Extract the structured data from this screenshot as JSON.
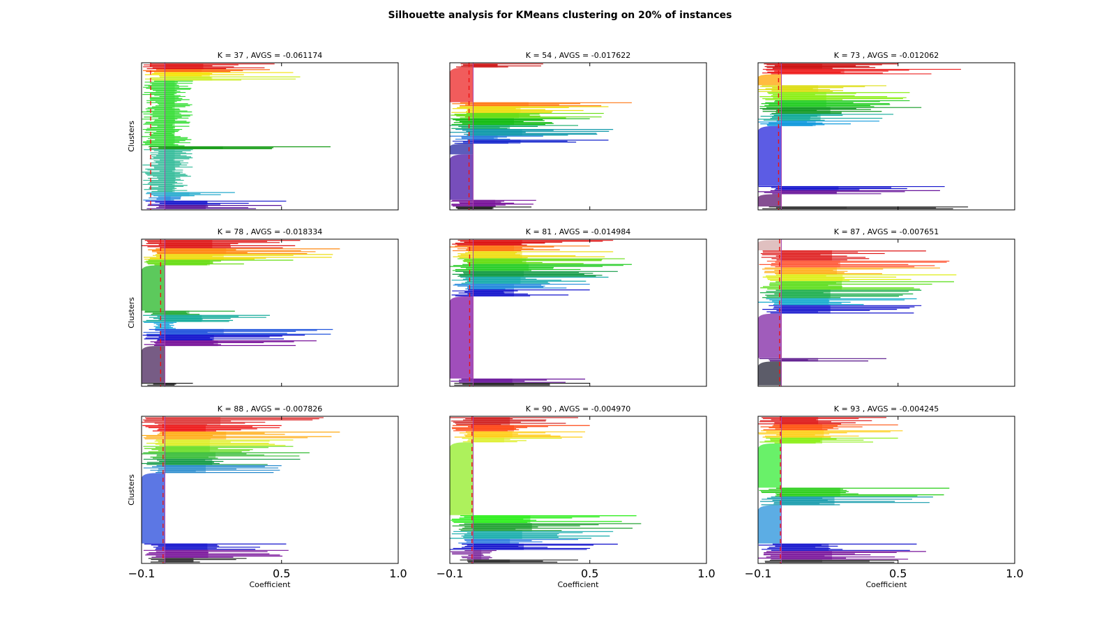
{
  "figure": {
    "suptitle": "Silhouette analysis for KMeans clustering on 20% of instances"
  },
  "chart_data": [
    {
      "type": "bar",
      "subtype": "silhouette",
      "title": "K = 37 , AVGS = -0.061174",
      "k": 37,
      "avgs": -0.061174,
      "ylabel": "Clusters",
      "xlabel": "",
      "xlim": [
        -0.1,
        1.0
      ],
      "xticks": [
        "−0.1",
        "0.5",
        "1.0"
      ],
      "xticks_visible": false,
      "silhouette_sizes_and_extents": [
        {
          "color": "#dd1111",
          "size": 4,
          "max": 0.47
        },
        {
          "color": "#ff6611",
          "size": 2,
          "max": 0.45
        },
        {
          "color": "#f5e000",
          "size": 3,
          "max": 0.55
        },
        {
          "color": "#ccee22",
          "size": 3,
          "max": 0.58
        },
        {
          "color": "#33dd33",
          "size": 46,
          "max": 0.12
        },
        {
          "color": "#119911",
          "size": 2,
          "max": 0.71
        },
        {
          "color": "#33bb99",
          "size": 30,
          "max": 0.12
        },
        {
          "color": "#22aacc",
          "size": 3,
          "max": 0.3
        },
        {
          "color": "#2288dd",
          "size": 3,
          "max": 0.07
        },
        {
          "color": "#1111cc",
          "size": 3,
          "max": 0.52
        },
        {
          "color": "#551199",
          "size": 3,
          "max": 0.5
        }
      ]
    },
    {
      "type": "bar",
      "subtype": "silhouette",
      "title": "K = 54 , AVGS = -0.017622",
      "k": 54,
      "avgs": -0.017622,
      "ylabel": "",
      "xlabel": "",
      "xlim": [
        -0.1,
        1.0
      ],
      "xticks": [
        "−0.1",
        "0.5",
        "1.0"
      ],
      "xticks_visible": false,
      "silhouette_sizes_and_extents": [
        {
          "color": "#cc1111",
          "size": 3,
          "max": 0.3
        },
        {
          "color": "#ee3333",
          "size": 26,
          "max": 0.0
        },
        {
          "color": "#ff7711",
          "size": 3,
          "max": 0.68
        },
        {
          "color": "#eedd11",
          "size": 5,
          "max": 0.58
        },
        {
          "color": "#66dd11",
          "size": 4,
          "max": 0.56
        },
        {
          "color": "#11bb11",
          "size": 5,
          "max": 0.5
        },
        {
          "color": "#11aa66",
          "size": 3,
          "max": 0.45
        },
        {
          "color": "#1199aa",
          "size": 5,
          "max": 0.6
        },
        {
          "color": "#2277dd",
          "size": 3,
          "max": 0.3
        },
        {
          "color": "#1122cc",
          "size": 3,
          "max": 0.58
        },
        {
          "color": "#3333aa",
          "size": 8,
          "max": 0.0
        },
        {
          "color": "#5522aa",
          "size": 34,
          "max": 0.0
        },
        {
          "color": "#771199",
          "size": 5,
          "max": 0.27
        },
        {
          "color": "#222222",
          "size": 2,
          "max": 0.25
        }
      ]
    },
    {
      "type": "bar",
      "subtype": "silhouette",
      "title": "K = 73 , AVGS = -0.012062",
      "k": 73,
      "avgs": -0.012062,
      "ylabel": "",
      "xlabel": "",
      "xlim": [
        -0.1,
        1.0
      ],
      "xticks": [
        "−0.1",
        "0.5",
        "1.0"
      ],
      "xticks_visible": false,
      "silhouette_sizes_and_extents": [
        {
          "color": "#cc1111",
          "size": 4,
          "max": 0.5
        },
        {
          "color": "#ee2222",
          "size": 4,
          "max": 0.77
        },
        {
          "color": "#ffaa11",
          "size": 8,
          "max": 0.0
        },
        {
          "color": "#dddd11",
          "size": 5,
          "max": 0.45
        },
        {
          "color": "#88ee11",
          "size": 6,
          "max": 0.55
        },
        {
          "color": "#22cc22",
          "size": 5,
          "max": 0.55
        },
        {
          "color": "#119922",
          "size": 5,
          "max": 0.6
        },
        {
          "color": "#11aa99",
          "size": 5,
          "max": 0.48
        },
        {
          "color": "#1199dd",
          "size": 4,
          "max": 0.42
        },
        {
          "color": "#3333dd",
          "size": 44,
          "max": 0.0
        },
        {
          "color": "#1111cc",
          "size": 3,
          "max": 0.7
        },
        {
          "color": "#661199",
          "size": 3,
          "max": 0.68
        },
        {
          "color": "#662277",
          "size": 9,
          "max": 0.0
        },
        {
          "color": "#333333",
          "size": 2,
          "max": 0.8
        }
      ]
    },
    {
      "type": "bar",
      "subtype": "silhouette",
      "title": "K = 78 , AVGS = -0.018334",
      "k": 78,
      "avgs": -0.018334,
      "ylabel": "Clusters",
      "xlabel": "",
      "xlim": [
        -0.1,
        1.0
      ],
      "xticks": [
        "−0.1",
        "0.5",
        "1.0"
      ],
      "xticks_visible": false,
      "silhouette_sizes_and_extents": [
        {
          "color": "#dd1111",
          "size": 6,
          "max": 0.58
        },
        {
          "color": "#ff8811",
          "size": 4,
          "max": 0.75
        },
        {
          "color": "#eedd11",
          "size": 4,
          "max": 0.72
        },
        {
          "color": "#66dd11",
          "size": 4,
          "max": 0.55
        },
        {
          "color": "#33bb33",
          "size": 32,
          "max": 0.0
        },
        {
          "color": "#22aa33",
          "size": 3,
          "max": 0.3
        },
        {
          "color": "#11aa99",
          "size": 5,
          "max": 0.45
        },
        {
          "color": "#22aadd",
          "size": 5,
          "max": 0.05
        },
        {
          "color": "#2255dd",
          "size": 4,
          "max": 0.72
        },
        {
          "color": "#1111cc",
          "size": 4,
          "max": 0.6
        },
        {
          "color": "#771199",
          "size": 4,
          "max": 0.65
        },
        {
          "color": "#553366",
          "size": 26,
          "max": 0.0
        },
        {
          "color": "#222222",
          "size": 2,
          "max": 0.12
        }
      ]
    },
    {
      "type": "bar",
      "subtype": "silhouette",
      "title": "K = 81 , AVGS = -0.014984",
      "k": 81,
      "avgs": -0.014984,
      "ylabel": "",
      "xlabel": "",
      "xlim": [
        -0.1,
        1.0
      ],
      "xticks": [
        "−0.1",
        "0.5",
        "1.0"
      ],
      "xticks_visible": false,
      "silhouette_sizes_and_extents": [
        {
          "color": "#dd1111",
          "size": 4,
          "max": 0.6
        },
        {
          "color": "#ff7711",
          "size": 4,
          "max": 0.5
        },
        {
          "color": "#eedd11",
          "size": 5,
          "max": 0.6
        },
        {
          "color": "#66dd11",
          "size": 4,
          "max": 0.65
        },
        {
          "color": "#22cc22",
          "size": 5,
          "max": 0.68
        },
        {
          "color": "#119944",
          "size": 4,
          "max": 0.62
        },
        {
          "color": "#11aaaa",
          "size": 5,
          "max": 0.58
        },
        {
          "color": "#2288dd",
          "size": 4,
          "max": 0.5
        },
        {
          "color": "#1111cc",
          "size": 5,
          "max": 0.5
        },
        {
          "color": "#8822aa",
          "size": 58,
          "max": 0.0
        },
        {
          "color": "#661199",
          "size": 3,
          "max": 0.48
        },
        {
          "color": "#222222",
          "size": 2,
          "max": 0.5
        }
      ]
    },
    {
      "type": "bar",
      "subtype": "silhouette",
      "title": "K = 87 , AVGS = -0.007651",
      "k": 87,
      "avgs": -0.007651,
      "ylabel": "",
      "xlabel": "",
      "xlim": [
        -0.1,
        1.0
      ],
      "xticks": [
        "−0.1",
        "0.5",
        "1.0"
      ],
      "xticks_visible": false,
      "silhouette_sizes_and_extents": [
        {
          "color": "#d8b0b0",
          "size": 6,
          "max": 0.0
        },
        {
          "color": "#dd1111",
          "size": 6,
          "max": 0.62
        },
        {
          "color": "#ff5533",
          "size": 4,
          "max": 0.72
        },
        {
          "color": "#ffaa11",
          "size": 4,
          "max": 0.68
        },
        {
          "color": "#ddee11",
          "size": 4,
          "max": 0.75
        },
        {
          "color": "#55dd11",
          "size": 5,
          "max": 0.74
        },
        {
          "color": "#11aa44",
          "size": 5,
          "max": 0.6
        },
        {
          "color": "#11aacc",
          "size": 4,
          "max": 0.58
        },
        {
          "color": "#1111cc",
          "size": 5,
          "max": 0.6
        },
        {
          "color": "#8833aa",
          "size": 26,
          "max": 0.0
        },
        {
          "color": "#551188",
          "size": 2,
          "max": 0.45
        },
        {
          "color": "#333344",
          "size": 14,
          "max": 0.0
        }
      ]
    },
    {
      "type": "bar",
      "subtype": "silhouette",
      "title": "K = 88 , AVGS = -0.007826",
      "k": 88,
      "avgs": -0.007826,
      "ylabel": "Clusters",
      "xlabel": "Coefficient",
      "xlim": [
        -0.1,
        1.0
      ],
      "xticks": [
        "−0.1",
        "0.5",
        "1.0"
      ],
      "xticks_visible": true,
      "silhouette_sizes_and_extents": [
        {
          "color": "#dd3333",
          "size": 5,
          "max": 0.68
        },
        {
          "color": "#ee1111",
          "size": 4,
          "max": 0.5
        },
        {
          "color": "#ffaa11",
          "size": 5,
          "max": 0.75
        },
        {
          "color": "#ddee22",
          "size": 4,
          "max": 0.55
        },
        {
          "color": "#66dd22",
          "size": 4,
          "max": 0.55
        },
        {
          "color": "#33bb33",
          "size": 4,
          "max": 0.62
        },
        {
          "color": "#119944",
          "size": 4,
          "max": 0.58
        },
        {
          "color": "#2288cc",
          "size": 5,
          "max": 0.5
        },
        {
          "color": "#3355dd",
          "size": 44,
          "max": 0.0
        },
        {
          "color": "#1111cc",
          "size": 4,
          "max": 0.52
        },
        {
          "color": "#771199",
          "size": 5,
          "max": 0.53
        },
        {
          "color": "#222222",
          "size": 3,
          "max": 0.35
        }
      ]
    },
    {
      "type": "bar",
      "subtype": "silhouette",
      "title": "K = 90 , AVGS = -0.004970",
      "k": 90,
      "avgs": -0.00497,
      "ylabel": "",
      "xlabel": "Coefficient",
      "xlim": [
        -0.1,
        1.0
      ],
      "xticks": [
        "−0.1",
        "0.5",
        "1.0"
      ],
      "xticks_visible": true,
      "silhouette_sizes_and_extents": [
        {
          "color": "#cc1111",
          "size": 5,
          "max": 0.45
        },
        {
          "color": "#ff4411",
          "size": 4,
          "max": 0.5
        },
        {
          "color": "#ffcc11",
          "size": 4,
          "max": 0.48
        },
        {
          "color": "#ddee22",
          "size": 3,
          "max": 0.38
        },
        {
          "color": "#99ee33",
          "size": 46,
          "max": 0.0
        },
        {
          "color": "#22ee11",
          "size": 5,
          "max": 0.7
        },
        {
          "color": "#119922",
          "size": 5,
          "max": 0.72
        },
        {
          "color": "#11aaaa",
          "size": 5,
          "max": 0.6
        },
        {
          "color": "#2277dd",
          "size": 3,
          "max": 0.45
        },
        {
          "color": "#1111cc",
          "size": 4,
          "max": 0.62
        },
        {
          "color": "#772299",
          "size": 6,
          "max": 0.1
        },
        {
          "color": "#222222",
          "size": 2,
          "max": 0.45
        }
      ]
    },
    {
      "type": "bar",
      "subtype": "silhouette",
      "title": "K = 93 , AVGS = -0.004245",
      "k": 93,
      "avgs": -0.004245,
      "ylabel": "",
      "xlabel": "Coefficient",
      "xlim": [
        -0.1,
        1.0
      ],
      "xticks": [
        "−0.1",
        "0.5",
        "1.0"
      ],
      "xticks_visible": true,
      "silhouette_sizes_and_extents": [
        {
          "color": "#dd1111",
          "size": 5,
          "max": 0.45
        },
        {
          "color": "#ff5511",
          "size": 4,
          "max": 0.5
        },
        {
          "color": "#ffcc11",
          "size": 5,
          "max": 0.52
        },
        {
          "color": "#88ee11",
          "size": 4,
          "max": 0.5
        },
        {
          "color": "#44ee44",
          "size": 30,
          "max": 0.0
        },
        {
          "color": "#22cc11",
          "size": 6,
          "max": 0.72
        },
        {
          "color": "#1199aa",
          "size": 6,
          "max": 0.65
        },
        {
          "color": "#3399dd",
          "size": 26,
          "max": 0.0
        },
        {
          "color": "#1111cc",
          "size": 5,
          "max": 0.58
        },
        {
          "color": "#771199",
          "size": 6,
          "max": 0.62
        },
        {
          "color": "#333333",
          "size": 2,
          "max": 0.5
        }
      ]
    }
  ]
}
